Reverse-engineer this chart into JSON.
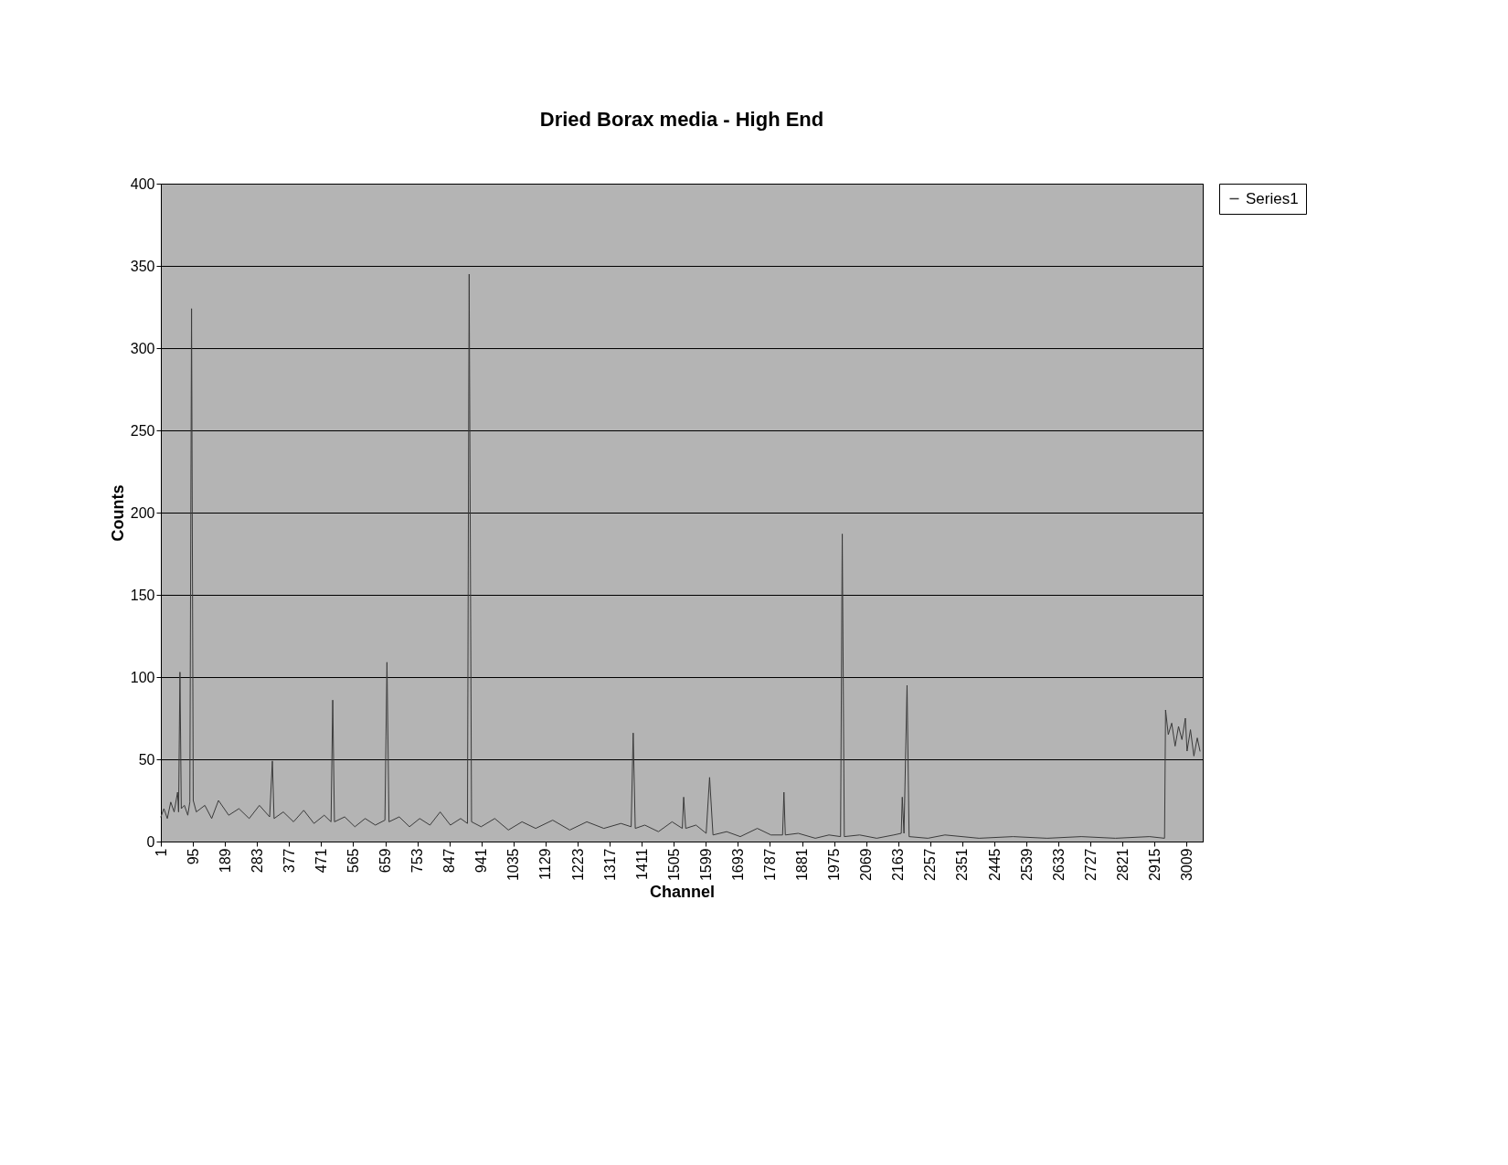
{
  "chart_data": {
    "type": "line",
    "title": "Dried Borax media - High End",
    "xlabel": "Channel",
    "ylabel": "Counts",
    "x": [
      1,
      10,
      20,
      30,
      40,
      50,
      53,
      57,
      61,
      70,
      80,
      86,
      91,
      96,
      105,
      130,
      150,
      170,
      200,
      230,
      260,
      290,
      320,
      328,
      333,
      360,
      390,
      420,
      450,
      480,
      500,
      505,
      510,
      540,
      570,
      600,
      630,
      658,
      664,
      670,
      700,
      730,
      760,
      790,
      820,
      850,
      880,
      900,
      905,
      912,
      940,
      980,
      1020,
      1060,
      1100,
      1150,
      1200,
      1250,
      1300,
      1350,
      1380,
      1386,
      1392,
      1420,
      1460,
      1500,
      1530,
      1534,
      1540,
      1570,
      1600,
      1610,
      1620,
      1660,
      1700,
      1750,
      1790,
      1824,
      1828,
      1832,
      1870,
      1920,
      1960,
      1994,
      1999,
      2005,
      2050,
      2100,
      2150,
      2172,
      2175,
      2180,
      2189,
      2195,
      2250,
      2300,
      2400,
      2500,
      2600,
      2700,
      2800,
      2900,
      2944,
      2947,
      2955,
      2965,
      2975,
      2985,
      2995,
      3005,
      3010,
      3020,
      3030,
      3040,
      3048
    ],
    "series": [
      {
        "name": "Series1",
        "color": "#3a3a3a",
        "values": [
          15,
          20,
          14,
          24,
          18,
          30,
          18,
          103,
          20,
          22,
          16,
          24,
          324,
          25,
          18,
          22,
          14,
          25,
          16,
          20,
          14,
          22,
          15,
          49,
          14,
          18,
          12,
          19,
          11,
          16,
          12,
          86,
          12,
          15,
          9,
          14,
          10,
          13,
          109,
          12,
          15,
          9,
          14,
          10,
          18,
          10,
          14,
          11,
          345,
          12,
          9,
          14,
          7,
          12,
          8,
          13,
          7,
          12,
          8,
          11,
          9,
          66,
          8,
          10,
          6,
          12,
          8,
          27,
          8,
          10,
          5,
          39,
          4,
          6,
          3,
          8,
          4,
          4,
          30,
          4,
          5,
          2,
          4,
          3,
          187,
          3,
          4,
          2,
          4,
          5,
          27,
          5,
          95,
          3,
          2,
          4,
          2,
          3,
          2,
          3,
          2,
          3,
          2,
          80,
          65,
          72,
          58,
          70,
          62,
          75,
          55,
          68,
          52,
          63,
          55
        ]
      }
    ],
    "xlim": [
      1,
      3056
    ],
    "xticks": [
      1,
      95,
      189,
      283,
      377,
      471,
      565,
      659,
      753,
      847,
      941,
      1035,
      1129,
      1223,
      1317,
      1411,
      1505,
      1599,
      1693,
      1787,
      1881,
      1975,
      2069,
      2163,
      2257,
      2351,
      2445,
      2539,
      2633,
      2727,
      2821,
      2915,
      3009
    ],
    "ylim": [
      0,
      400
    ],
    "yticks": [
      0,
      50,
      100,
      150,
      200,
      250,
      300,
      350,
      400
    ],
    "grid": "y",
    "legend": "right",
    "line_style": "solid",
    "marker": "none"
  }
}
